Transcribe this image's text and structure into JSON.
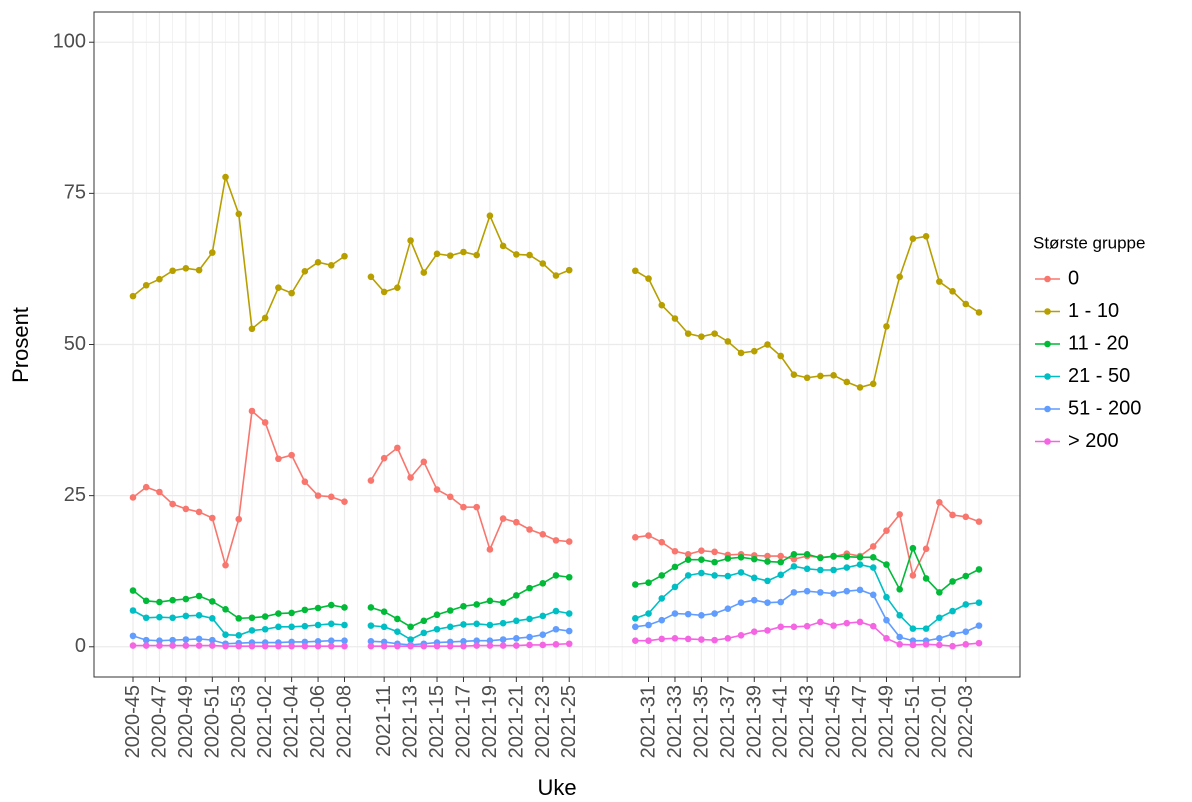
{
  "chart_data": {
    "type": "line",
    "xlabel": "Uke",
    "ylabel": "Prosent",
    "legend_title": "Største gruppe",
    "legend_position": "right",
    "grid": true,
    "categories": [
      "2020-45",
      null,
      "2020-47",
      null,
      "2020-49",
      null,
      "2020-51",
      null,
      "2020-53",
      null,
      "2021-02",
      null,
      "2021-04",
      null,
      "2021-06",
      null,
      "2021-08",
      null,
      null,
      "2021-11",
      null,
      "2021-13",
      null,
      "2021-15",
      null,
      "2021-17",
      null,
      "2021-19",
      null,
      "2021-21",
      null,
      "2021-23",
      null,
      "2021-25",
      null,
      null,
      null,
      null,
      null,
      "2021-31",
      null,
      "2021-33",
      null,
      "2021-35",
      null,
      "2021-37",
      null,
      "2021-39",
      null,
      "2021-41",
      null,
      "2021-43",
      null,
      "2021-45",
      null,
      "2021-47",
      null,
      "2021-49",
      null,
      "2021-51",
      null,
      "2022-01",
      null,
      "2022-03",
      null
    ],
    "ylim": [
      -5,
      105
    ],
    "yticks": [
      0,
      25,
      50,
      75,
      100
    ],
    "series": [
      {
        "name": "0",
        "color": "#F8766D",
        "values": [
          24.7,
          26.4,
          25.6,
          23.6,
          22.8,
          22.3,
          21.3,
          13.5,
          21.1,
          39.0,
          37.1,
          31.1,
          31.7,
          27.3,
          25.0,
          24.8,
          24.0,
          null,
          27.5,
          31.2,
          32.9,
          28.0,
          30.6,
          26.0,
          24.8,
          23.1,
          23.1,
          16.1,
          21.2,
          20.6,
          19.4,
          18.6,
          17.6,
          17.4,
          null,
          null,
          null,
          null,
          18.1,
          18.4,
          17.3,
          15.8,
          15.3,
          15.9,
          15.7,
          15.2,
          15.3,
          15.1,
          15.0,
          15.0,
          14.5,
          15.0,
          14.8,
          14.9,
          15.4,
          15.0,
          16.6,
          19.2,
          21.9,
          11.8,
          16.2,
          23.9,
          21.8,
          21.5,
          20.7
        ]
      },
      {
        "name": "1 - 10",
        "color": "#B79F00",
        "values": [
          58.0,
          59.8,
          60.8,
          62.2,
          62.6,
          62.3,
          65.2,
          77.7,
          71.6,
          52.6,
          54.4,
          59.4,
          58.5,
          62.1,
          63.6,
          63.1,
          64.6,
          null,
          61.2,
          58.7,
          59.4,
          67.2,
          61.9,
          65.0,
          64.7,
          65.3,
          64.8,
          71.3,
          66.3,
          64.9,
          64.8,
          63.4,
          61.4,
          62.3,
          null,
          null,
          null,
          null,
          62.2,
          60.9,
          56.5,
          54.3,
          51.8,
          51.3,
          51.8,
          50.5,
          48.6,
          48.9,
          50.0,
          48.1,
          45.0,
          44.5,
          44.8,
          44.9,
          43.8,
          42.9,
          43.5,
          53.0,
          61.2,
          67.5,
          67.9,
          60.4,
          58.8,
          56.7,
          55.3
        ]
      },
      {
        "name": "11 - 20",
        "color": "#00BA38",
        "values": [
          9.3,
          7.6,
          7.4,
          7.7,
          7.9,
          8.4,
          7.5,
          6.2,
          4.7,
          4.8,
          5.0,
          5.5,
          5.6,
          6.1,
          6.4,
          6.9,
          6.5,
          null,
          6.5,
          5.8,
          4.6,
          3.3,
          4.3,
          5.3,
          6.0,
          6.7,
          7.0,
          7.6,
          7.3,
          8.5,
          9.7,
          10.5,
          11.8,
          11.5,
          null,
          null,
          null,
          null,
          10.3,
          10.6,
          11.8,
          13.2,
          14.4,
          14.4,
          14.0,
          14.6,
          14.8,
          14.5,
          14.1,
          14.0,
          15.3,
          15.3,
          14.7,
          15.0,
          14.9,
          14.8,
          14.8,
          13.6,
          9.5,
          16.3,
          11.3,
          9.0,
          10.8,
          11.7,
          12.8
        ]
      },
      {
        "name": "21 - 50",
        "color": "#00BFC4",
        "values": [
          6.0,
          4.8,
          4.9,
          4.8,
          5.1,
          5.2,
          4.7,
          2.0,
          1.9,
          2.7,
          2.9,
          3.3,
          3.3,
          3.4,
          3.6,
          3.8,
          3.6,
          null,
          3.5,
          3.3,
          2.5,
          1.2,
          2.3,
          2.9,
          3.3,
          3.7,
          3.8,
          3.6,
          3.9,
          4.3,
          4.6,
          5.1,
          5.9,
          5.5,
          null,
          null,
          null,
          null,
          4.7,
          5.5,
          8.0,
          9.9,
          11.8,
          12.2,
          11.8,
          11.7,
          12.3,
          11.4,
          10.9,
          11.9,
          13.3,
          12.9,
          12.7,
          12.7,
          13.1,
          13.6,
          13.1,
          8.2,
          5.2,
          3.0,
          3.0,
          4.8,
          5.9,
          7.0,
          7.3
        ]
      },
      {
        "name": "51 - 200",
        "color": "#619CFF",
        "values": [
          1.8,
          1.1,
          1.0,
          1.1,
          1.2,
          1.3,
          1.1,
          0.5,
          0.6,
          0.7,
          0.7,
          0.7,
          0.8,
          0.8,
          0.9,
          1.0,
          1.0,
          null,
          0.9,
          0.8,
          0.5,
          0.3,
          0.5,
          0.7,
          0.8,
          0.9,
          1.0,
          1.0,
          1.2,
          1.4,
          1.6,
          2.0,
          2.9,
          2.6,
          null,
          null,
          null,
          null,
          3.3,
          3.6,
          4.4,
          5.5,
          5.4,
          5.2,
          5.5,
          6.3,
          7.3,
          7.7,
          7.3,
          7.4,
          9.0,
          9.2,
          9.0,
          8.8,
          9.2,
          9.4,
          8.6,
          4.4,
          1.6,
          1.0,
          1.0,
          1.4,
          2.1,
          2.5,
          3.5
        ]
      },
      {
        "name": "> 200",
        "color": "#F564E3",
        "values": [
          0.2,
          0.2,
          0.2,
          0.2,
          0.2,
          0.2,
          0.2,
          0.1,
          0.1,
          0.1,
          0.1,
          0.1,
          0.1,
          0.1,
          0.1,
          0.1,
          0.1,
          null,
          0.1,
          0.1,
          0.1,
          0.1,
          0.1,
          0.1,
          0.1,
          0.1,
          0.2,
          0.2,
          0.2,
          0.2,
          0.3,
          0.3,
          0.4,
          0.5,
          null,
          null,
          null,
          null,
          1.0,
          1.0,
          1.3,
          1.4,
          1.3,
          1.2,
          1.1,
          1.4,
          1.9,
          2.5,
          2.7,
          3.3,
          3.3,
          3.4,
          4.1,
          3.5,
          3.9,
          4.1,
          3.4,
          1.4,
          0.4,
          0.3,
          0.4,
          0.3,
          0.1,
          0.4,
          0.6
        ]
      }
    ]
  }
}
